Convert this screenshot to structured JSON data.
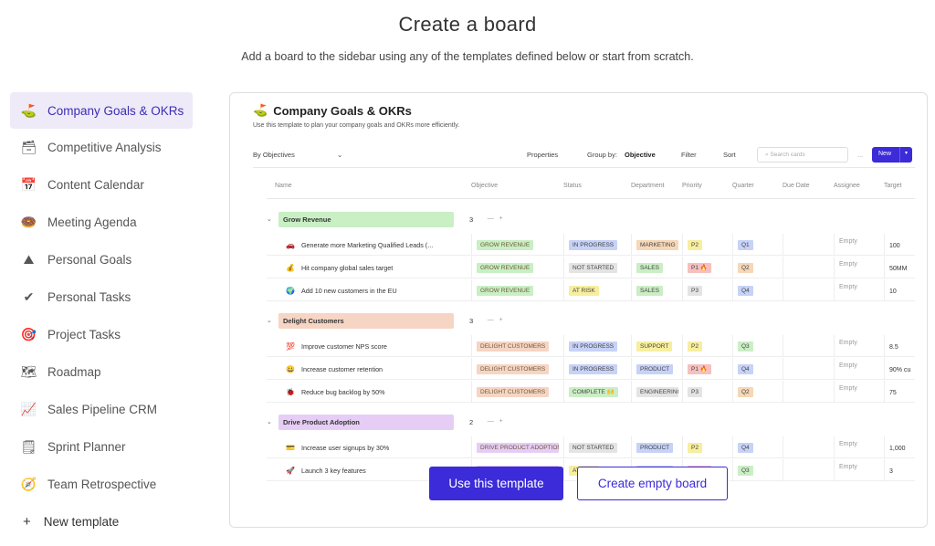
{
  "header": {
    "title": "Create a board",
    "subtitle": "Add a board to the sidebar using any of the templates defined below or start from scratch."
  },
  "sidebar": {
    "items": [
      {
        "label": "Company Goals & OKRs",
        "icon": "golf-flag-icon",
        "glyph": "⛳",
        "active": true
      },
      {
        "label": "Competitive Analysis",
        "icon": "card-box-icon",
        "glyph": "🗃",
        "active": false
      },
      {
        "label": "Content Calendar",
        "icon": "calendar-icon",
        "glyph": "📅",
        "active": false
      },
      {
        "label": "Meeting Agenda",
        "icon": "donut-icon",
        "glyph": "🍩",
        "active": false
      },
      {
        "label": "Personal Goals",
        "icon": "mountain-icon",
        "glyph": "⛰",
        "active": false
      },
      {
        "label": "Personal Tasks",
        "icon": "checkmark-icon",
        "glyph": "✔",
        "active": false
      },
      {
        "label": "Project Tasks",
        "icon": "target-icon",
        "glyph": "🎯",
        "active": false
      },
      {
        "label": "Roadmap",
        "icon": "map-icon",
        "glyph": "🗺",
        "active": false
      },
      {
        "label": "Sales Pipeline CRM",
        "icon": "chart-icon",
        "glyph": "📈",
        "active": false
      },
      {
        "label": "Sprint Planner",
        "icon": "notepad-icon",
        "glyph": "🗒",
        "active": false
      },
      {
        "label": "Team Retrospective",
        "icon": "compass-icon",
        "glyph": "🧭",
        "active": false
      }
    ],
    "new_template": "New template"
  },
  "preview": {
    "title": "Company Goals & OKRs",
    "description": "Use this template to plan your company goals and OKRs more efficiently.",
    "toolbar": {
      "view": "By Objectives",
      "properties": "Properties",
      "group_by_prefix": "Group by:",
      "group_by_value": "Objective",
      "filter": "Filter",
      "sort": "Sort",
      "search_placeholder": "Search cards",
      "more": "...",
      "new_label": "New"
    },
    "columns": [
      "Name",
      "Objective",
      "Status",
      "Department",
      "Priority",
      "Quarter",
      "Due Date",
      "Assignee",
      "Target"
    ],
    "groups": [
      {
        "label": "Grow Revenue",
        "count": "3",
        "color": "#c9efc4",
        "rows": [
          {
            "emoji": "🚗",
            "name": "Generate more Marketing Qualified Leads (...",
            "objective": "GROW REVENUE",
            "status": "IN PROGRESS",
            "department": "MARKETING",
            "priority": "P2",
            "quarter": "Q1",
            "assignee": "Empty",
            "target": "100"
          },
          {
            "emoji": "💰",
            "name": "Hit company global sales target",
            "objective": "GROW REVENUE",
            "status": "NOT STARTED",
            "department": "SALES",
            "priority": "P1 🔥",
            "quarter": "Q2",
            "assignee": "Empty",
            "target": "50MM"
          },
          {
            "emoji": "🌍",
            "name": "Add 10 new customers in the EU",
            "objective": "GROW REVENUE",
            "status": "AT RISK",
            "department": "SALES",
            "priority": "P3",
            "quarter": "Q4",
            "assignee": "Empty",
            "target": "10"
          }
        ]
      },
      {
        "label": "Delight Customers",
        "count": "3",
        "color": "#f6d5c4",
        "rows": [
          {
            "emoji": "💯",
            "name": "Improve customer NPS score",
            "objective": "DELIGHT CUSTOMERS",
            "status": "IN PROGRESS",
            "department": "SUPPORT",
            "priority": "P2",
            "quarter": "Q3",
            "assignee": "Empty",
            "target": "8.5"
          },
          {
            "emoji": "😀",
            "name": "Increase customer retention",
            "objective": "DELIGHT CUSTOMERS",
            "status": "IN PROGRESS",
            "department": "PRODUCT",
            "priority": "P1 🔥",
            "quarter": "Q4",
            "assignee": "Empty",
            "target": "90% cu"
          },
          {
            "emoji": "🐞",
            "name": "Reduce bug backlog by 50%",
            "objective": "DELIGHT CUSTOMERS",
            "status": "COMPLETE 🙌",
            "department": "ENGINEERING",
            "priority": "P3",
            "quarter": "Q2",
            "assignee": "Empty",
            "target": "75"
          }
        ]
      },
      {
        "label": "Drive Product Adoption",
        "count": "2",
        "color": "#e6cdf5",
        "rows": [
          {
            "emoji": "💳",
            "name": "Increase user signups by 30%",
            "objective": "DRIVE PRODUCT ADOPTION",
            "status": "NOT STARTED",
            "department": "PRODUCT",
            "priority": "P2",
            "quarter": "Q4",
            "assignee": "Empty",
            "target": "1,000"
          },
          {
            "emoji": "🚀",
            "name": "Launch 3 key features",
            "objective": "DRIVE PRODUCT ADOPTION",
            "status": "AT RISK",
            "department": "PRODUCT",
            "priority": "P1 🔥",
            "quarter": "Q3",
            "assignee": "Empty",
            "target": "3"
          }
        ]
      }
    ]
  },
  "actions": {
    "use_template": "Use this template",
    "create_empty": "Create empty board"
  },
  "colors": {
    "accent": "#3b2bd8",
    "sidebar_active_bg": "#eeeaf8",
    "tag_green": "#c9efc4",
    "tag_peach": "#f6d5c4",
    "tag_purple": "#e6cdf5",
    "tag_blue": "#c7d2f7",
    "tag_gray": "#e4e4e4",
    "tag_yellow": "#f7ee9e",
    "tag_red": "#f6c0c0",
    "tag_orange": "#f6d7b7",
    "tag_lightgreen": "#cbeec5"
  }
}
